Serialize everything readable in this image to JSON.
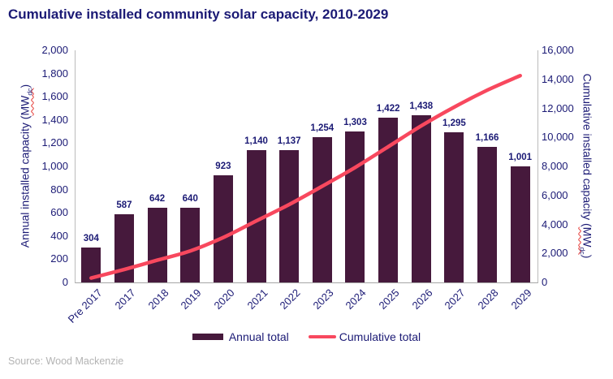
{
  "title": "Cumulative installed community solar capacity, 2010-2029",
  "source": "Source: Wood Mackenzie",
  "legend": {
    "annual_label": "Annual total",
    "cumulative_label": "Cumulative total"
  },
  "axes": {
    "left": {
      "title_prefix": "Annual installed capacity (",
      "unit": "MW",
      "unit_sub": "dc",
      "title_suffix": ")",
      "ticks": [
        "2,000",
        "1,800",
        "1,600",
        "1,400",
        "1,200",
        "1,000",
        "800",
        "600",
        "400",
        "200",
        "0"
      ]
    },
    "right": {
      "title_prefix": "Cumulative installed capacity (",
      "unit": "MW",
      "unit_sub": "dc",
      "title_suffix": ")",
      "ticks": [
        "16,000",
        "14,000",
        "12,000",
        "10,000",
        "8,000",
        "6,000",
        "4,000",
        "2,000",
        "0"
      ]
    }
  },
  "colors": {
    "bar": "#46193C",
    "line": "#F8485E",
    "text_navy": "#1B1A75",
    "axis_line": "#BBBBBB",
    "source_text": "#B3B3B3",
    "wavy_underline": "#E53935"
  },
  "chart_data": {
    "type": "bar",
    "title": "Cumulative installed community solar capacity, 2010-2029",
    "categories": [
      "Pre 2017",
      "2017",
      "2018",
      "2019",
      "2020",
      "2021",
      "2022",
      "2023",
      "2024",
      "2025",
      "2026",
      "2027",
      "2028",
      "2029"
    ],
    "series": [
      {
        "name": "Annual total",
        "type": "bar",
        "axis": "left",
        "values": [
          304,
          587,
          642,
          640,
          923,
          1140,
          1137,
          1254,
          1303,
          1422,
          1438,
          1295,
          1166,
          1001
        ],
        "labels": [
          "304",
          "587",
          "642",
          "640",
          "923",
          "1,140",
          "1,137",
          "1,254",
          "1,303",
          "1,422",
          "1,438",
          "1,295",
          "1,166",
          "1,001"
        ]
      },
      {
        "name": "Cumulative total",
        "type": "line",
        "axis": "right",
        "values": [
          304,
          891,
          1533,
          2173,
          3096,
          4236,
          5373,
          6627,
          7930,
          9352,
          10790,
          12085,
          13251,
          14252
        ]
      }
    ],
    "left_axis": {
      "label": "Annual installed capacity (MWdc)",
      "min": 0,
      "max": 2000,
      "step": 200
    },
    "right_axis": {
      "label": "Cumulative installed capacity (MWdc)",
      "min": 0,
      "max": 16000,
      "step": 2000
    },
    "grid": false,
    "legend_position": "bottom"
  }
}
